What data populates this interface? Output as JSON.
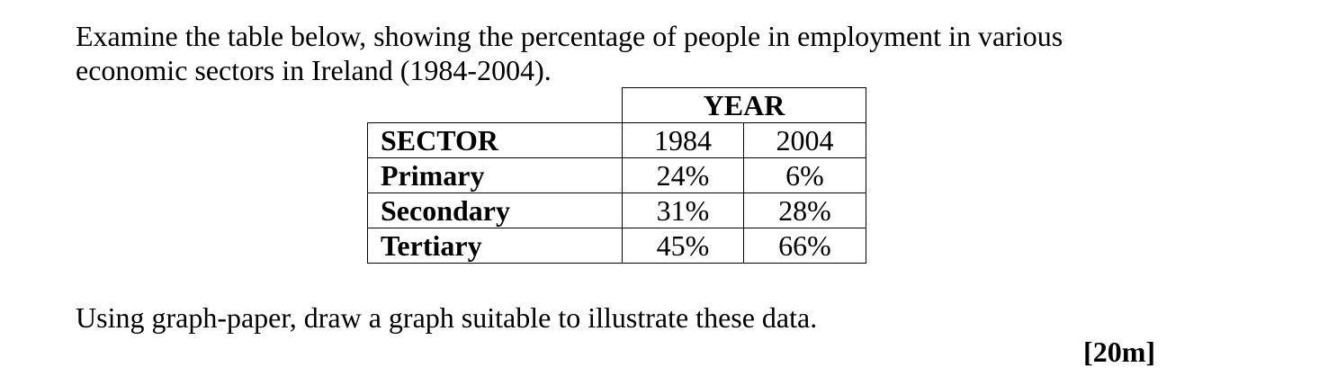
{
  "intro": {
    "line1": "Examine the table below, showing the percentage of people in employment in various",
    "line2": "economic sectors in Ireland (1984-2004)."
  },
  "table": {
    "year_header": "YEAR",
    "sector_header": "SECTOR",
    "years": [
      "1984",
      "2004"
    ],
    "rows": [
      {
        "sector": "Primary",
        "v1984": "24%",
        "v2004": "6%"
      },
      {
        "sector": "Secondary",
        "v1984": "31%",
        "v2004": "28%"
      },
      {
        "sector": "Tertiary",
        "v1984": "45%",
        "v2004": "66%"
      }
    ]
  },
  "instruction": "Using graph-paper, draw a graph suitable to illustrate these data.",
  "marks": "[20m]"
}
